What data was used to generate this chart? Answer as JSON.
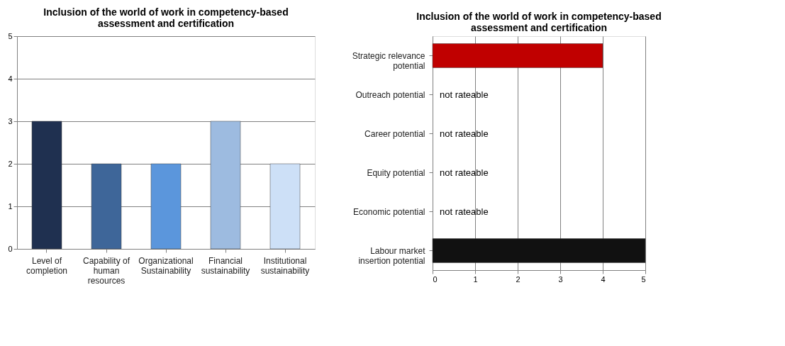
{
  "chart_data": [
    {
      "type": "bar",
      "title": "Inclusion of the world of work in competency-based assessment and certification",
      "categories": [
        "Level of completion",
        "Capability of human resources",
        "Organizational Sustainability",
        "Financial sustainability",
        "Institutional sustainability"
      ],
      "values": [
        3,
        2,
        2,
        3,
        2
      ],
      "colors": [
        "#1f3050",
        "#3e6699",
        "#5b96dc",
        "#9dbbe0",
        "#cde0f7"
      ],
      "ylim": [
        0,
        5
      ],
      "yticks": [
        0,
        1,
        2,
        3,
        4,
        5
      ],
      "grid": "y"
    },
    {
      "type": "bar",
      "orientation": "horizontal",
      "title": "Inclusion of the world of work in competency-based assessment and certification",
      "categories": [
        "Strategic relevance potential",
        "Outreach potential",
        "Career potential",
        "Equity potential",
        "Economic potential",
        "Labour market insertion potential"
      ],
      "values": [
        4,
        null,
        null,
        null,
        null,
        5
      ],
      "colors": [
        "#c00000",
        null,
        null,
        null,
        null,
        "#111111"
      ],
      "value_labels": [
        null,
        "not rateable",
        "not rateable",
        "not rateable",
        "not rateable",
        null
      ],
      "xlim": [
        0,
        5
      ],
      "xticks": [
        0,
        1,
        2,
        3,
        4,
        5
      ],
      "grid": "x"
    }
  ]
}
